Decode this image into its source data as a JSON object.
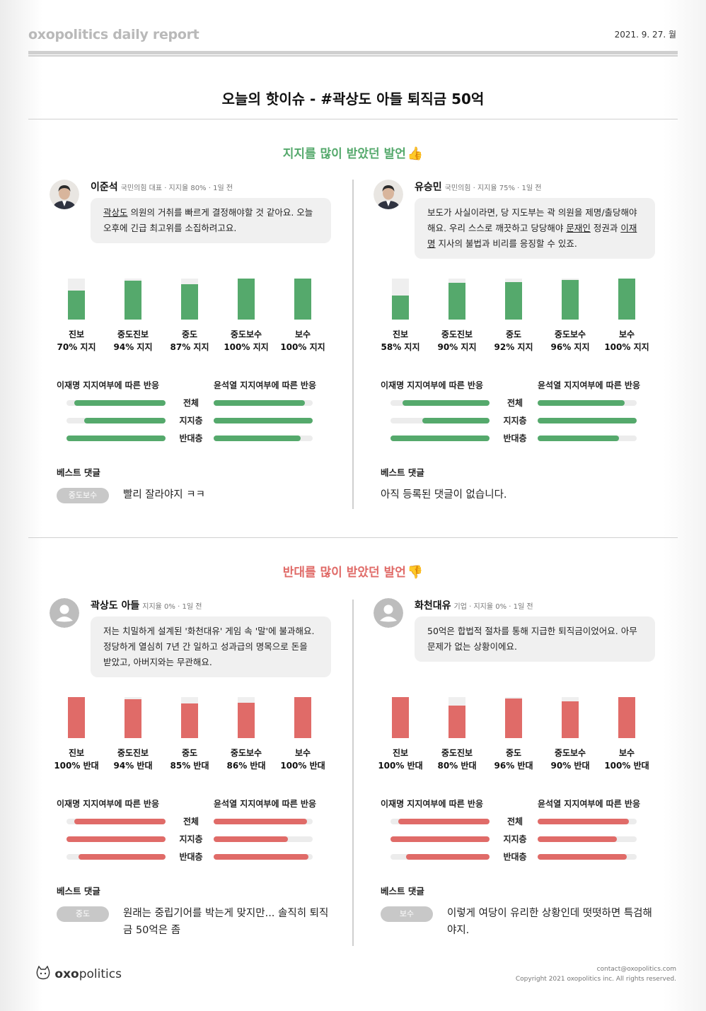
{
  "header": {
    "brand": "oxopolitics daily report",
    "date": "2021. 9. 27. 월"
  },
  "title": "오늘의 핫이슈 - #곽상도 아들 퇴직금 50억",
  "colors": {
    "support": "#55a96c",
    "oppose": "#e06b68",
    "track": "#efefef"
  },
  "labels": {
    "lee_react": "이재명 지지여부에 따른 반응",
    "yoon_react": "윤석열 지지여부에 따른 반응",
    "rows": [
      "전체",
      "지지층",
      "반대층"
    ],
    "best": "베스트 댓글"
  },
  "support_section": {
    "title": "지지를 많이 받았던 발언",
    "icon": "thumbs-up-icon",
    "cards": [
      {
        "name": "이준석",
        "meta": "국민의힘 대표 · 지지율 80% · 1일 전",
        "avatar": "person-photo",
        "quote_parts": [
          "곽상도",
          " 의원의 거취를 빠르게 결정해야할 것 같아요. 오늘 오후에 긴급 최고위를 소집하려고요."
        ],
        "bars": [
          {
            "group": "진보",
            "value": 70,
            "text": "70% 지지"
          },
          {
            "group": "중도진보",
            "value": 94,
            "text": "94% 지지"
          },
          {
            "group": "중도",
            "value": 87,
            "text": "87% 지지"
          },
          {
            "group": "중도보수",
            "value": 100,
            "text": "100% 지지"
          },
          {
            "group": "보수",
            "value": 100,
            "text": "100% 지지"
          }
        ],
        "lee_fill": [
          0.92,
          0.82,
          1.0
        ],
        "yoon_fill": [
          0.92,
          1.0,
          0.88
        ],
        "best_tag": "중도보수",
        "best_text": "빨리 잘라야지 ㅋㅋ"
      },
      {
        "name": "유승민",
        "meta": "국민의힘 · 지지율 75% · 1일 전",
        "avatar": "person-photo",
        "quote_parts": [
          "보도가 사실이라면, 당 지도부는 곽 의원을 제명/출당해야 해요. 우리 스스로 깨끗하고 당당해야 ",
          "문재인",
          " 정권과 ",
          "이재명",
          " 지사의 불법과 비리를 응징할 수 있죠."
        ],
        "bars": [
          {
            "group": "진보",
            "value": 58,
            "text": "58% 지지"
          },
          {
            "group": "중도진보",
            "value": 90,
            "text": "90% 지지"
          },
          {
            "group": "중도",
            "value": 92,
            "text": "92% 지지"
          },
          {
            "group": "중도보수",
            "value": 96,
            "text": "96% 지지"
          },
          {
            "group": "보수",
            "value": 100,
            "text": "100% 지지"
          }
        ],
        "lee_fill": [
          0.88,
          0.68,
          1.0
        ],
        "yoon_fill": [
          0.88,
          1.0,
          0.82
        ],
        "best_tag": "",
        "best_text": "아직 등록된 댓글이 없습니다."
      }
    ]
  },
  "oppose_section": {
    "title": "반대를 많이 받았던 발언",
    "icon": "thumbs-down-icon",
    "cards": [
      {
        "name": "곽상도 아들",
        "meta": "지지율 0% · 1일 전",
        "avatar": "default-user",
        "quote_parts": [
          "저는 치밀하게 설계된 '화천대유' 게임 속 '말'에 불과해요. 정당하게 열심히 7년 간 일하고 성과급의 명목으로 돈을 받았고, 아버지와는 무관해요."
        ],
        "bars": [
          {
            "group": "진보",
            "value": 100,
            "text": "100% 반대"
          },
          {
            "group": "중도진보",
            "value": 94,
            "text": "94% 반대"
          },
          {
            "group": "중도",
            "value": 85,
            "text": "85% 반대"
          },
          {
            "group": "중도보수",
            "value": 86,
            "text": "86% 반대"
          },
          {
            "group": "보수",
            "value": 100,
            "text": "100% 반대"
          }
        ],
        "lee_fill": [
          0.92,
          1.0,
          0.88
        ],
        "yoon_fill": [
          0.94,
          0.75,
          0.96
        ],
        "best_tag": "중도",
        "best_text": "원래는 중립기어를 박는게 맞지만... 솔직히 퇴직금 50억은 좀"
      },
      {
        "name": "화천대유",
        "meta": "기업 · 지지율 0% · 1일 전",
        "avatar": "default-user",
        "quote_parts": [
          "50억은 합법적 절차를 통해 지급한 퇴직금이었어요. 아무 문제가 없는 상황이에요."
        ],
        "bars": [
          {
            "group": "진보",
            "value": 100,
            "text": "100% 반대"
          },
          {
            "group": "중도진보",
            "value": 80,
            "text": "80% 반대"
          },
          {
            "group": "중도",
            "value": 96,
            "text": "96% 반대"
          },
          {
            "group": "중도보수",
            "value": 90,
            "text": "90% 반대"
          },
          {
            "group": "보수",
            "value": 100,
            "text": "100% 반대"
          }
        ],
        "lee_fill": [
          0.92,
          1.0,
          0.84
        ],
        "yoon_fill": [
          0.92,
          0.8,
          0.9
        ],
        "best_tag": "보수",
        "best_text": "이렇게 여당이 유리한 상황인데 떳떳하면 특검해야지."
      }
    ]
  },
  "footer": {
    "logo_bold": "oxo",
    "logo_rest": "politics",
    "contact": "contact@oxopolitics.com",
    "copyright": "Copyright 2021 oxopolitics inc. All rights reserved."
  }
}
